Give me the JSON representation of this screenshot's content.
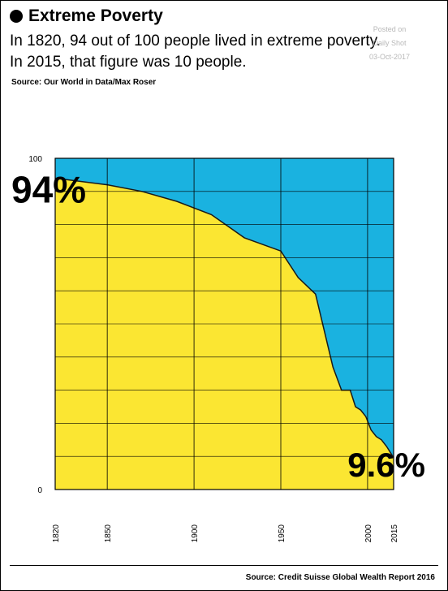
{
  "header": {
    "title": "Extreme Poverty",
    "subtitle_line1": "In 1820, 94 out of 100 people lived in extreme poverty.",
    "subtitle_line2": "In 2015, that figure was 10 people.",
    "source_top": "Source: Our World in Data/Max Roser"
  },
  "watermark": {
    "line1": "Posted on",
    "line2": "Daily Shot",
    "line3": "03-Oct-2017"
  },
  "footer": {
    "source": "Source: Credit Suisse Global Wealth Report 2016"
  },
  "colors": {
    "poverty_area": "#fbe632",
    "remainder_area": "#1ab2e0",
    "line": "#1a1a1a"
  },
  "chart_data": {
    "type": "area",
    "title": "Extreme Poverty",
    "xlabel": "",
    "ylabel": "",
    "xlim": [
      1820,
      2015
    ],
    "ylim": [
      0,
      100
    ],
    "y_ticks": [
      0,
      100
    ],
    "x_ticks": [
      1820,
      1850,
      1900,
      1950,
      2000,
      2015
    ],
    "grid": true,
    "series": [
      {
        "x": [
          1820,
          1850,
          1870,
          1890,
          1910,
          1929,
          1950,
          1960,
          1970,
          1975,
          1980,
          1985,
          1990,
          1993,
          1996,
          1999,
          2002,
          2005,
          2008,
          2011,
          2015
        ],
        "y": [
          94,
          92,
          90,
          87,
          83,
          76,
          72,
          64,
          59,
          48,
          37,
          30,
          30,
          25,
          24,
          22,
          18,
          16,
          15,
          13,
          9.6
        ]
      }
    ],
    "annotations": [
      {
        "text": "94%",
        "x": 1820,
        "y": 94
      },
      {
        "text": "9.6%",
        "x": 2015,
        "y": 9.6
      }
    ]
  }
}
